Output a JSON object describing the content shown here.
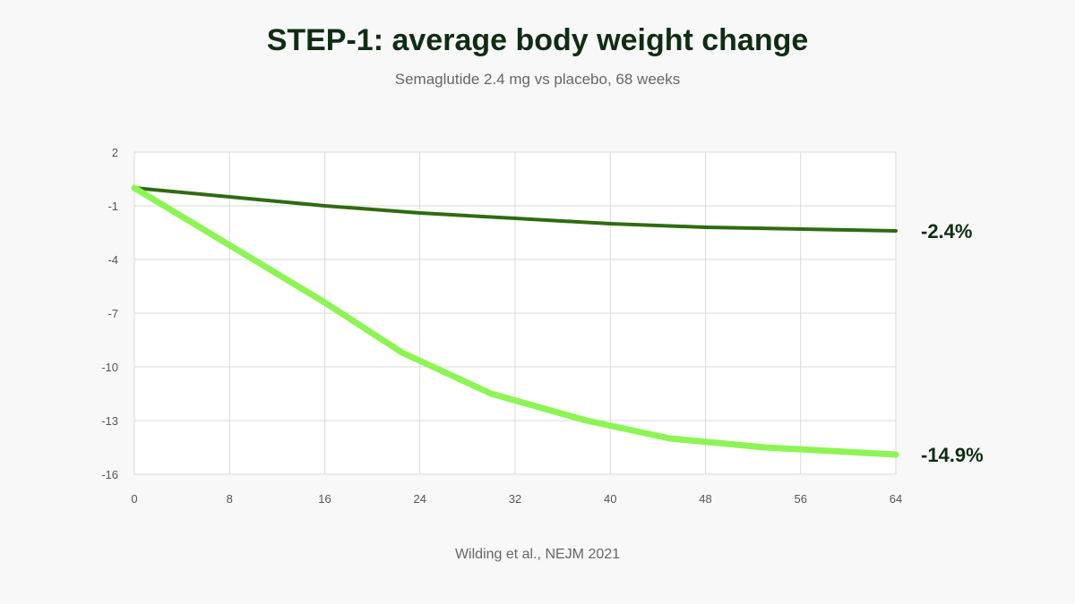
{
  "header": {
    "title": "STEP-1: average body weight change",
    "subtitle": "Semaglutide 2.4 mg vs placebo, 68 weeks"
  },
  "footer": {
    "source": "Wilding et al., NEJM 2021"
  },
  "chart_data": {
    "type": "line",
    "title": "STEP-1: average body weight change",
    "subtitle": "Semaglutide 2.4 mg vs placebo, 68 weeks",
    "xlabel": "",
    "ylabel": "",
    "xlim": [
      0,
      64
    ],
    "ylim": [
      -16,
      2
    ],
    "x_ticks": [
      0,
      8,
      16,
      24,
      32,
      40,
      48,
      56,
      64
    ],
    "y_ticks": [
      2,
      -1,
      -4,
      -7,
      -10,
      -13,
      -16
    ],
    "grid": true,
    "legend": "none",
    "series": [
      {
        "color": "#2f6b12",
        "end_label": "-2.4%",
        "x": [
          0,
          8,
          16,
          24,
          32,
          40,
          48,
          56,
          64
        ],
        "values": [
          0,
          -0.5,
          -1.0,
          -1.4,
          -1.7,
          -2.0,
          -2.2,
          -2.3,
          -2.4
        ]
      },
      {
        "color": "#8cf554",
        "end_label": "-14.9%",
        "x": [
          0,
          8,
          16,
          22.5,
          30,
          38,
          45,
          53,
          64
        ],
        "values": [
          0,
          -3.2,
          -6.4,
          -9.2,
          -11.5,
          -13.0,
          -14.0,
          -14.5,
          -14.9
        ]
      }
    ]
  }
}
